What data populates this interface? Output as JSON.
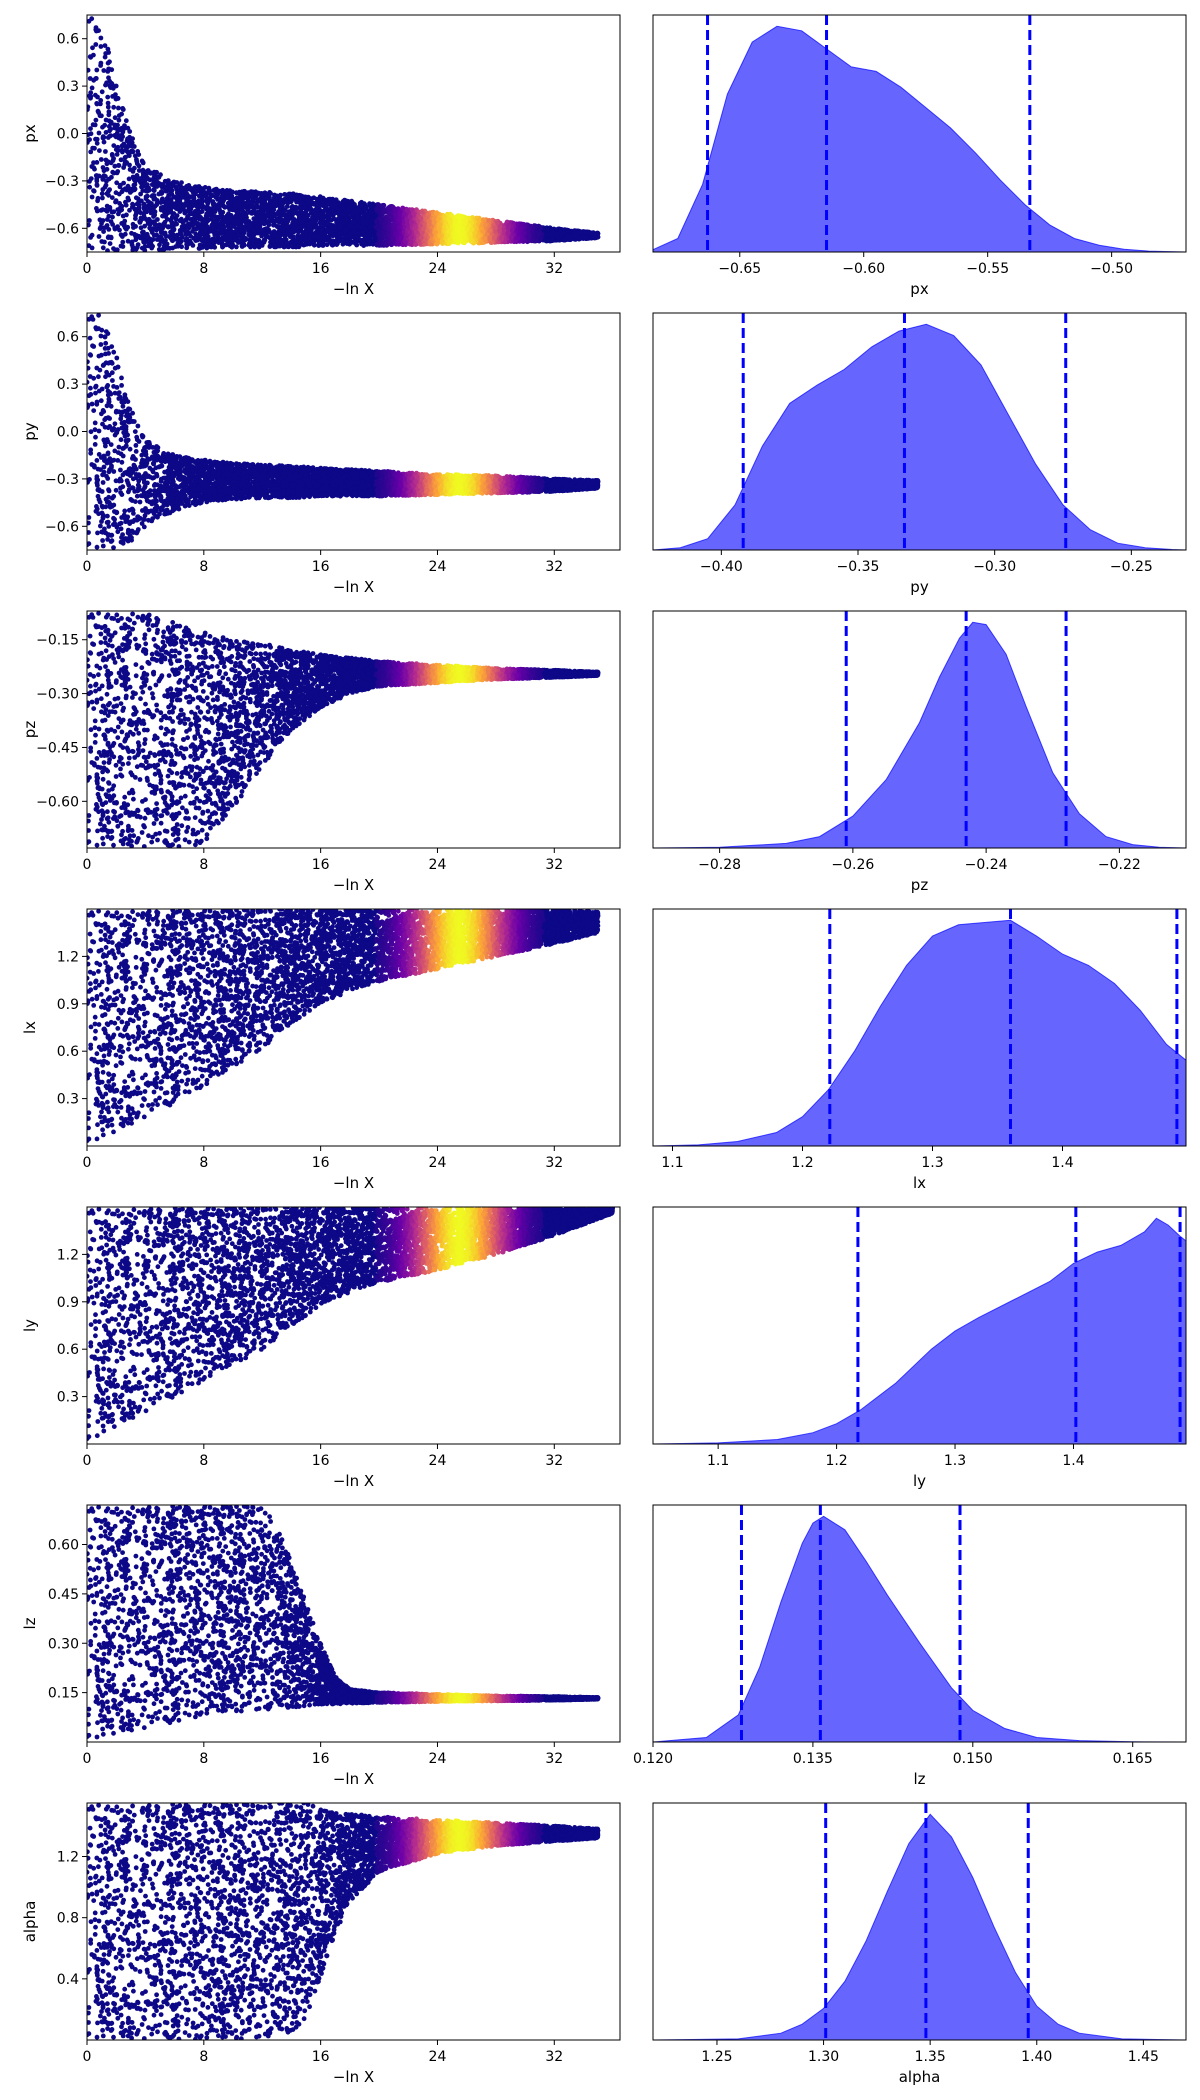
{
  "figure": {
    "colormap": [
      "#0d0887",
      "#6a00a8",
      "#b12a90",
      "#e16462",
      "#fca636",
      "#f0f921"
    ],
    "marker_color": "#0d0887",
    "kde_fill": "#0000ff",
    "kde_fill_opacity": 0.6,
    "quantile_line_color": "#0000ff"
  },
  "chart_data": [
    {
      "type": "scatter",
      "panel": "trace",
      "param": "px",
      "xlabel": "−ln X",
      "ylabel": "px",
      "xlim": [
        0,
        36.5
      ],
      "ylim": [
        -0.75,
        0.75
      ],
      "xticks": [
        "0",
        "8",
        "16",
        "24",
        "32"
      ],
      "yticks": [
        "0.6",
        "0.3",
        "0.0",
        "−0.3",
        "−0.6"
      ],
      "envelope": {
        "x": [
          0,
          1,
          2,
          3,
          4,
          6,
          8,
          10,
          12,
          14,
          16,
          20,
          24,
          28,
          32,
          35
        ],
        "upper": [
          0.75,
          0.75,
          0.3,
          0.0,
          -0.2,
          -0.3,
          -0.34,
          -0.36,
          -0.37,
          -0.38,
          -0.4,
          -0.45,
          -0.5,
          -0.55,
          -0.6,
          -0.63
        ],
        "lower": [
          -0.75,
          -0.75,
          -0.74,
          -0.74,
          -0.74,
          -0.73,
          -0.73,
          -0.72,
          -0.72,
          -0.72,
          -0.71,
          -0.71,
          -0.7,
          -0.69,
          -0.68,
          -0.66
        ]
      },
      "peak_x": 25.5,
      "tail_y": -0.65
    },
    {
      "type": "area",
      "panel": "posterior",
      "param": "px",
      "xlabel": "px",
      "xlim": [
        -0.685,
        -0.47
      ],
      "xticks": [
        "−0.65",
        "−0.60",
        "−0.55",
        "−0.50"
      ],
      "x": [
        -0.685,
        -0.675,
        -0.665,
        -0.655,
        -0.645,
        -0.635,
        -0.625,
        -0.615,
        -0.605,
        -0.595,
        -0.585,
        -0.575,
        -0.565,
        -0.555,
        -0.545,
        -0.535,
        -0.525,
        -0.515,
        -0.505,
        -0.495,
        -0.485,
        -0.47
      ],
      "y": [
        0.01,
        0.06,
        0.3,
        0.7,
        0.93,
        1.0,
        0.98,
        0.9,
        0.82,
        0.8,
        0.73,
        0.64,
        0.55,
        0.44,
        0.32,
        0.21,
        0.12,
        0.06,
        0.03,
        0.012,
        0.004,
        0.0
      ],
      "quantiles": [
        -0.663,
        -0.615,
        -0.533
      ]
    },
    {
      "type": "scatter",
      "panel": "trace",
      "param": "py",
      "xlabel": "−ln X",
      "ylabel": "py",
      "xlim": [
        0,
        36.5
      ],
      "ylim": [
        -0.75,
        0.75
      ],
      "xticks": [
        "0",
        "8",
        "16",
        "24",
        "32"
      ],
      "yticks": [
        "0.6",
        "0.3",
        "0.0",
        "−0.3",
        "−0.6"
      ],
      "envelope": {
        "x": [
          0,
          1,
          2,
          3,
          4,
          6,
          8,
          10,
          12,
          14,
          16,
          20,
          24,
          28,
          32,
          35
        ],
        "upper": [
          0.75,
          0.75,
          0.5,
          0.15,
          -0.05,
          -0.15,
          -0.18,
          -0.2,
          -0.21,
          -0.22,
          -0.23,
          -0.25,
          -0.27,
          -0.28,
          -0.3,
          -0.31
        ],
        "lower": [
          -0.75,
          -0.75,
          -0.75,
          -0.7,
          -0.6,
          -0.5,
          -0.45,
          -0.43,
          -0.42,
          -0.42,
          -0.41,
          -0.41,
          -0.4,
          -0.39,
          -0.38,
          -0.36
        ]
      },
      "peak_x": 25.5,
      "tail_y": -0.33
    },
    {
      "type": "area",
      "panel": "posterior",
      "param": "py",
      "xlabel": "py",
      "xlim": [
        -0.425,
        -0.23
      ],
      "xticks": [
        "−0.40",
        "−0.35",
        "−0.30",
        "−0.25"
      ],
      "x": [
        -0.425,
        -0.415,
        -0.405,
        -0.395,
        -0.385,
        -0.375,
        -0.365,
        -0.355,
        -0.345,
        -0.335,
        -0.325,
        -0.315,
        -0.305,
        -0.295,
        -0.285,
        -0.275,
        -0.265,
        -0.255,
        -0.245,
        -0.235,
        -0.23
      ],
      "y": [
        0.0,
        0.01,
        0.05,
        0.2,
        0.46,
        0.65,
        0.73,
        0.8,
        0.9,
        0.97,
        1.0,
        0.95,
        0.82,
        0.6,
        0.38,
        0.2,
        0.09,
        0.03,
        0.01,
        0.002,
        0.0
      ],
      "quantiles": [
        -0.392,
        -0.333,
        -0.274
      ]
    },
    {
      "type": "scatter",
      "panel": "trace",
      "param": "pz",
      "xlabel": "−ln X",
      "ylabel": "pz",
      "xlim": [
        0,
        36.5
      ],
      "ylim": [
        -0.73,
        -0.07
      ],
      "xticks": [
        "0",
        "8",
        "16",
        "24",
        "32"
      ],
      "yticks": [
        "−0.15",
        "−0.30",
        "−0.45",
        "−0.60"
      ],
      "envelope": {
        "x": [
          0,
          2,
          4,
          6,
          8,
          10,
          12,
          14,
          16,
          18,
          20,
          24,
          28,
          32,
          35
        ],
        "upper": [
          -0.07,
          -0.07,
          -0.07,
          -0.1,
          -0.13,
          -0.15,
          -0.16,
          -0.18,
          -0.19,
          -0.2,
          -0.21,
          -0.22,
          -0.23,
          -0.235,
          -0.24
        ],
        "lower": [
          -0.73,
          -0.73,
          -0.73,
          -0.73,
          -0.72,
          -0.62,
          -0.5,
          -0.4,
          -0.34,
          -0.3,
          -0.28,
          -0.27,
          -0.26,
          -0.255,
          -0.25
        ]
      },
      "peak_x": 25.5,
      "tail_y": -0.245
    },
    {
      "type": "area",
      "panel": "posterior",
      "param": "pz",
      "xlabel": "pz",
      "xlim": [
        -0.29,
        -0.21
      ],
      "xticks": [
        "−0.28",
        "−0.26",
        "−0.24",
        "−0.22"
      ],
      "x": [
        -0.29,
        -0.28,
        -0.27,
        -0.265,
        -0.26,
        -0.255,
        -0.25,
        -0.247,
        -0.244,
        -0.242,
        -0.24,
        -0.237,
        -0.234,
        -0.23,
        -0.226,
        -0.222,
        -0.218,
        -0.214,
        -0.21
      ],
      "y": [
        0.0,
        0.003,
        0.02,
        0.05,
        0.14,
        0.3,
        0.55,
        0.75,
        0.92,
        0.99,
        0.98,
        0.85,
        0.62,
        0.33,
        0.15,
        0.05,
        0.015,
        0.003,
        0.0
      ],
      "quantiles": [
        -0.261,
        -0.243,
        -0.228
      ]
    },
    {
      "type": "scatter",
      "panel": "trace",
      "param": "lx",
      "xlabel": "−ln X",
      "ylabel": "lx",
      "xlim": [
        0,
        36.5
      ],
      "ylim": [
        0.0,
        1.5
      ],
      "xticks": [
        "0",
        "8",
        "16",
        "24",
        "32"
      ],
      "yticks": [
        "1.2",
        "0.9",
        "0.6",
        "0.3"
      ],
      "envelope": {
        "x": [
          0,
          2,
          4,
          6,
          8,
          10,
          12,
          14,
          16,
          18,
          20,
          24,
          28,
          32,
          35
        ],
        "upper": [
          1.5,
          1.5,
          1.5,
          1.5,
          1.5,
          1.5,
          1.5,
          1.5,
          1.5,
          1.5,
          1.5,
          1.5,
          1.5,
          1.5,
          1.48
        ],
        "lower": [
          0.0,
          0.08,
          0.18,
          0.27,
          0.37,
          0.5,
          0.62,
          0.78,
          0.9,
          0.98,
          1.04,
          1.12,
          1.2,
          1.28,
          1.35
        ]
      },
      "peak_x": 25.5,
      "tail_y": 1.42
    },
    {
      "type": "area",
      "panel": "posterior",
      "param": "lx",
      "xlabel": "lx",
      "xlim": [
        1.085,
        1.495
      ],
      "xticks": [
        "1.1",
        "1.2",
        "1.3",
        "1.4"
      ],
      "x": [
        1.085,
        1.12,
        1.15,
        1.18,
        1.2,
        1.22,
        1.24,
        1.26,
        1.28,
        1.3,
        1.32,
        1.34,
        1.36,
        1.38,
        1.4,
        1.42,
        1.44,
        1.46,
        1.48,
        1.495
      ],
      "y": [
        0.0,
        0.005,
        0.02,
        0.06,
        0.13,
        0.25,
        0.42,
        0.62,
        0.8,
        0.93,
        0.98,
        0.99,
        1.0,
        0.93,
        0.85,
        0.8,
        0.72,
        0.6,
        0.45,
        0.38
      ],
      "quantiles": [
        1.221,
        1.36,
        1.488
      ]
    },
    {
      "type": "scatter",
      "panel": "trace",
      "param": "ly",
      "xlabel": "−ln X",
      "ylabel": "ly",
      "xlim": [
        0,
        36.5
      ],
      "ylim": [
        0.0,
        1.5
      ],
      "xticks": [
        "0",
        "8",
        "16",
        "24",
        "32"
      ],
      "yticks": [
        "1.2",
        "0.9",
        "0.6",
        "0.3"
      ],
      "envelope": {
        "x": [
          0,
          2,
          4,
          6,
          8,
          10,
          12,
          14,
          16,
          18,
          20,
          24,
          28,
          32,
          36
        ],
        "upper": [
          1.5,
          1.5,
          1.5,
          1.5,
          1.5,
          1.5,
          1.5,
          1.5,
          1.5,
          1.5,
          1.5,
          1.5,
          1.5,
          1.5,
          1.5
        ],
        "lower": [
          0.0,
          0.1,
          0.2,
          0.3,
          0.4,
          0.5,
          0.6,
          0.75,
          0.88,
          0.96,
          1.02,
          1.1,
          1.2,
          1.32,
          1.46
        ]
      },
      "peak_x": 25.5,
      "tail_y": 1.47
    },
    {
      "type": "area",
      "panel": "posterior",
      "param": "ly",
      "xlabel": "ly",
      "xlim": [
        1.045,
        1.495
      ],
      "xticks": [
        "1.1",
        "1.2",
        "1.3",
        "1.4"
      ],
      "x": [
        1.045,
        1.1,
        1.15,
        1.18,
        1.2,
        1.22,
        1.25,
        1.28,
        1.3,
        1.32,
        1.35,
        1.38,
        1.4,
        1.42,
        1.44,
        1.46,
        1.47,
        1.48,
        1.49,
        1.495
      ],
      "y": [
        0.0,
        0.005,
        0.02,
        0.05,
        0.09,
        0.15,
        0.27,
        0.42,
        0.5,
        0.56,
        0.64,
        0.72,
        0.8,
        0.85,
        0.88,
        0.94,
        1.0,
        0.97,
        0.92,
        0.9
      ],
      "quantiles": [
        1.218,
        1.402,
        1.49
      ]
    },
    {
      "type": "scatter",
      "panel": "trace",
      "param": "lz",
      "xlabel": "−ln X",
      "ylabel": "lz",
      "xlim": [
        0,
        36.5
      ],
      "ylim": [
        0.0,
        0.72
      ],
      "xticks": [
        "0",
        "8",
        "16",
        "24",
        "32"
      ],
      "yticks": [
        "0.60",
        "0.45",
        "0.30",
        "0.15"
      ],
      "envelope": {
        "x": [
          0,
          2,
          4,
          6,
          8,
          10,
          12,
          13,
          14,
          15,
          16,
          17,
          18,
          20,
          24,
          28,
          32,
          35
        ],
        "upper": [
          0.72,
          0.72,
          0.72,
          0.72,
          0.72,
          0.72,
          0.72,
          0.65,
          0.55,
          0.42,
          0.3,
          0.2,
          0.16,
          0.15,
          0.145,
          0.14,
          0.138,
          0.135
        ],
        "lower": [
          0.0,
          0.02,
          0.04,
          0.06,
          0.08,
          0.09,
          0.1,
          0.1,
          0.105,
          0.11,
          0.112,
          0.115,
          0.117,
          0.12,
          0.123,
          0.125,
          0.127,
          0.13
        ]
      },
      "peak_x": 25.5,
      "tail_y": 0.133
    },
    {
      "type": "area",
      "panel": "posterior",
      "param": "lz",
      "xlabel": "lz",
      "xlim": [
        0.12,
        0.17
      ],
      "xticks": [
        "0.120",
        "0.135",
        "0.150",
        "0.165"
      ],
      "x": [
        0.12,
        0.125,
        0.128,
        0.13,
        0.132,
        0.134,
        0.135,
        0.136,
        0.138,
        0.14,
        0.142,
        0.145,
        0.148,
        0.15,
        0.153,
        0.156,
        0.16,
        0.165,
        0.17
      ],
      "y": [
        0.0,
        0.02,
        0.12,
        0.33,
        0.62,
        0.88,
        0.97,
        1.0,
        0.94,
        0.8,
        0.65,
        0.44,
        0.24,
        0.14,
        0.06,
        0.02,
        0.006,
        0.001,
        0.0
      ],
      "quantiles": [
        0.1283,
        0.1357,
        0.1488
      ]
    },
    {
      "type": "scatter",
      "panel": "trace",
      "param": "alpha",
      "xlabel": "−ln X",
      "ylabel": "alpha",
      "xlim": [
        0,
        36.5
      ],
      "ylim": [
        0.0,
        1.55
      ],
      "xticks": [
        "0",
        "8",
        "16",
        "24",
        "32"
      ],
      "yticks": [
        "1.2",
        "0.8",
        "0.4"
      ],
      "envelope": {
        "x": [
          0,
          2,
          4,
          6,
          8,
          10,
          12,
          14,
          15,
          16,
          17,
          18,
          20,
          24,
          28,
          32,
          35
        ],
        "upper": [
          1.55,
          1.55,
          1.55,
          1.55,
          1.55,
          1.55,
          1.55,
          1.55,
          1.55,
          1.52,
          1.5,
          1.48,
          1.46,
          1.44,
          1.42,
          1.4,
          1.38
        ],
        "lower": [
          0.0,
          0.0,
          0.0,
          0.0,
          0.0,
          0.0,
          0.02,
          0.05,
          0.15,
          0.4,
          0.7,
          0.9,
          1.1,
          1.22,
          1.27,
          1.3,
          1.32
        ]
      },
      "peak_x": 25.5,
      "tail_y": 1.35
    },
    {
      "type": "area",
      "panel": "posterior",
      "param": "alpha",
      "xlabel": "alpha",
      "xlim": [
        1.22,
        1.47
      ],
      "xticks": [
        "1.25",
        "1.30",
        "1.35",
        "1.40",
        "1.45"
      ],
      "x": [
        1.22,
        1.26,
        1.28,
        1.29,
        1.3,
        1.31,
        1.32,
        1.33,
        1.34,
        1.35,
        1.36,
        1.37,
        1.38,
        1.39,
        1.4,
        1.41,
        1.42,
        1.44,
        1.47
      ],
      "y": [
        0.0,
        0.005,
        0.03,
        0.07,
        0.14,
        0.26,
        0.44,
        0.66,
        0.87,
        1.0,
        0.9,
        0.72,
        0.5,
        0.3,
        0.15,
        0.07,
        0.03,
        0.005,
        0.0
      ],
      "quantiles": [
        1.301,
        1.348,
        1.396
      ]
    }
  ]
}
